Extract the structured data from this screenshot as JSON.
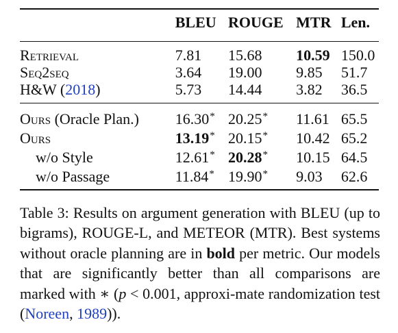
{
  "table": {
    "headers": [
      "",
      "BLEU",
      "ROUGE",
      "MTR",
      "Len."
    ],
    "group1": [
      {
        "system": {
          "text": "Retrieval",
          "smallcaps": true
        },
        "cells": [
          {
            "v": "7.81"
          },
          {
            "v": "15.68"
          },
          {
            "v": "10.59",
            "bold": true
          },
          {
            "v": "150.0"
          }
        ]
      },
      {
        "system": {
          "text": "Seq2seq",
          "smallcaps": true
        },
        "cells": [
          {
            "v": "3.64"
          },
          {
            "v": "19.00"
          },
          {
            "v": "9.85"
          },
          {
            "v": "51.7"
          }
        ]
      },
      {
        "system": {
          "text": "H&W (",
          "link": "2018",
          "after": ")"
        },
        "cells": [
          {
            "v": "5.73"
          },
          {
            "v": "14.44"
          },
          {
            "v": "3.82"
          },
          {
            "v": "36.5"
          }
        ]
      }
    ],
    "group2": [
      {
        "system": {
          "text": "Ours",
          "smallcaps": true,
          "after": " (Oracle Plan.)"
        },
        "cells": [
          {
            "v": "16.30",
            "star": true
          },
          {
            "v": "20.25",
            "star": true
          },
          {
            "v": "11.61"
          },
          {
            "v": "65.5"
          }
        ]
      },
      {
        "system": {
          "text": "Ours",
          "smallcaps": true
        },
        "cells": [
          {
            "v": "13.19",
            "bold": true,
            "star": true
          },
          {
            "v": "20.15",
            "star": true
          },
          {
            "v": "10.42"
          },
          {
            "v": "65.2"
          }
        ]
      },
      {
        "system": {
          "text": "w/o Style",
          "indent": true
        },
        "cells": [
          {
            "v": "12.61",
            "star": true
          },
          {
            "v": "20.28",
            "bold": true,
            "star": true
          },
          {
            "v": "10.15"
          },
          {
            "v": "64.5"
          }
        ]
      },
      {
        "system": {
          "text": "w/o Passage",
          "indent": true
        },
        "cells": [
          {
            "v": "11.84",
            "star": true
          },
          {
            "v": "19.90",
            "star": true
          },
          {
            "v": "9.03"
          },
          {
            "v": "62.6"
          }
        ]
      }
    ],
    "star_symbol": "*"
  },
  "caption": {
    "part1": "Table 3: Results on argument generation with BLEU (up to bigrams), ROUGE-L, and METEOR (MTR). Best systems without oracle planning are in ",
    "bold_word": "bold",
    "part2": " per metric. Our models that are significantly better than all comparisons are marked with ",
    "star": "∗",
    "part3": " (",
    "p_var": "p",
    "part4": " < 0.001, approxi-mate randomization test (",
    "cite": "Noreen",
    "part5": ", ",
    "cite_year": "1989",
    "part6": "))."
  }
}
